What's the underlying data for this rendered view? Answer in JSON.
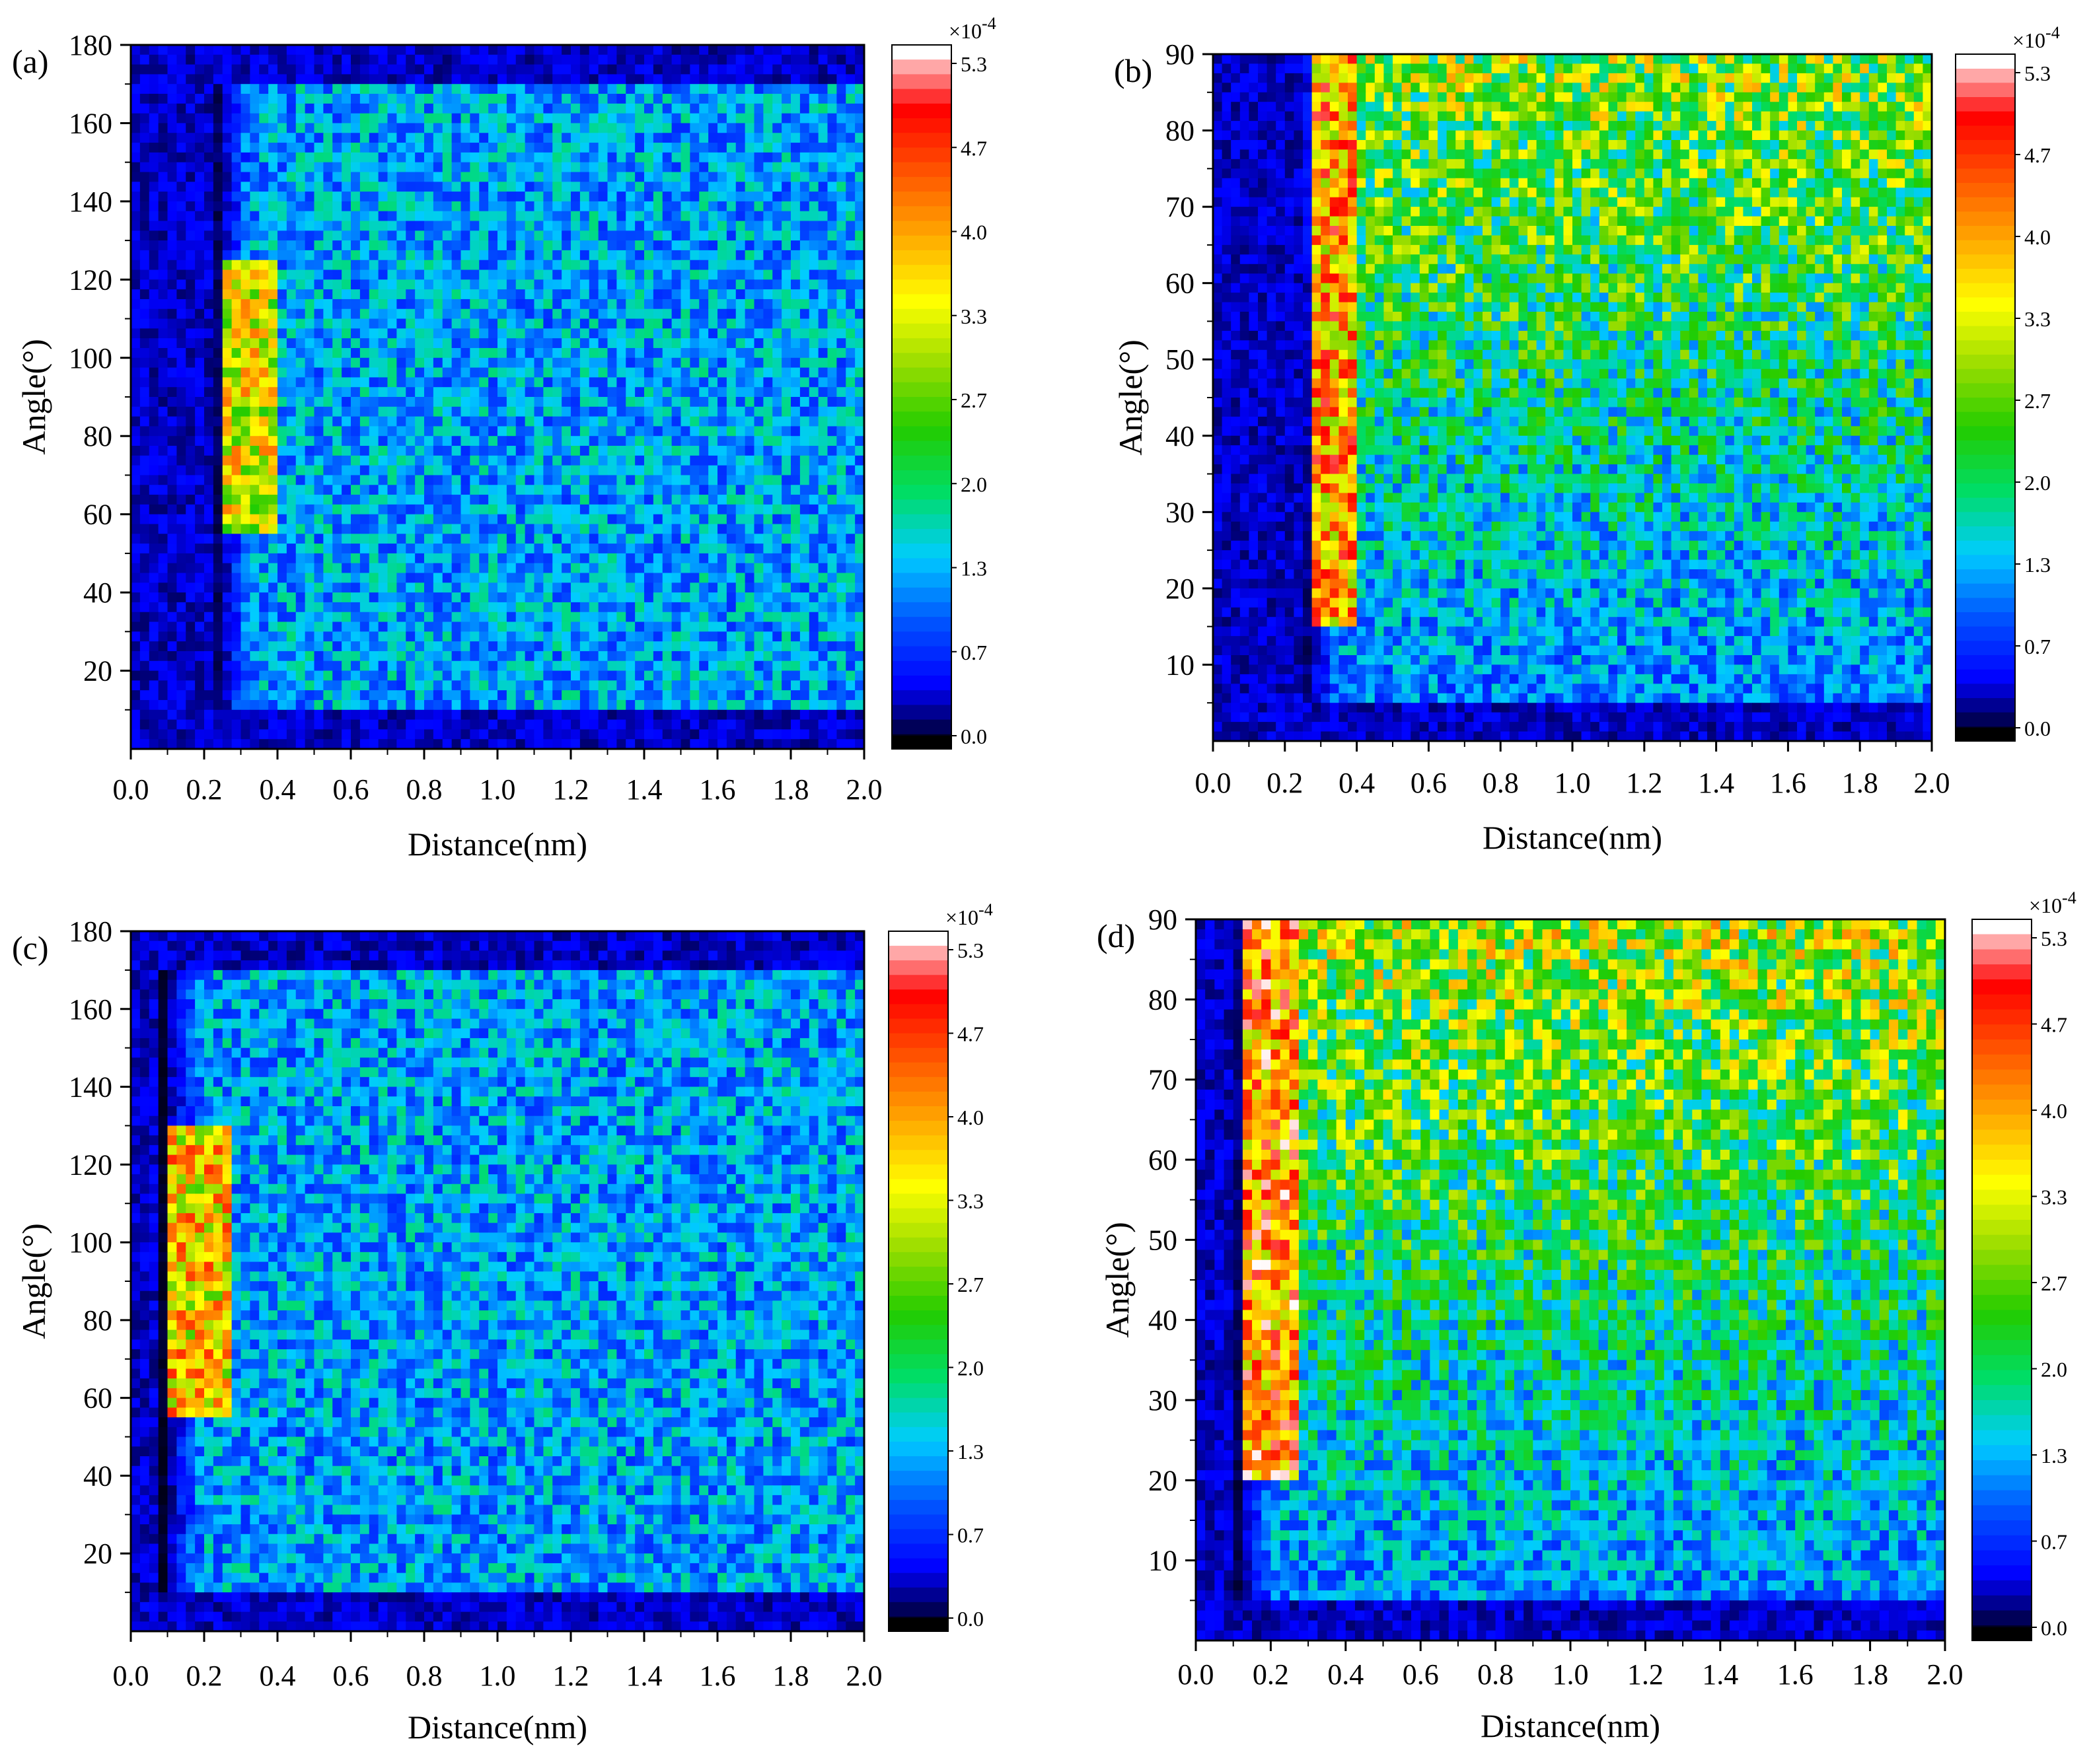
{
  "colormap": {
    "stops": [
      "#000000",
      "#0000ff",
      "#0055ff",
      "#00ccff",
      "#00dd66",
      "#22cc00",
      "#99dd00",
      "#ffff00",
      "#ffaa00",
      "#ff5500",
      "#ff0000",
      "#ffffff"
    ],
    "exponent_label": "×10",
    "exponent_power": "-4",
    "tick_labels": [
      "0.0",
      "0.7",
      "1.3",
      "2.0",
      "2.7",
      "3.3",
      "4.0",
      "4.7",
      "5.3"
    ],
    "min": 0.0,
    "max": 5.3
  },
  "chart_data": [
    {
      "type": "heatmap",
      "panel_label": "(a)",
      "xlabel": "Distance(nm)",
      "ylabel": "Angle(°)",
      "xlim": [
        0.0,
        2.0
      ],
      "ylim": [
        0,
        180
      ],
      "xticks": [
        "0.0",
        "0.2",
        "0.4",
        "0.6",
        "0.8",
        "1.0",
        "1.2",
        "1.4",
        "1.6",
        "1.8",
        "2.0"
      ],
      "yticks": [
        "20",
        "40",
        "60",
        "80",
        "100",
        "120",
        "140",
        "160",
        "180"
      ],
      "hotspot": {
        "x_range": [
          0.26,
          0.4
        ],
        "y_range": [
          55,
          125
        ],
        "peak": 4.2
      },
      "onset_x": 0.22,
      "background_level": 1.3,
      "background_y_range": [
        10,
        170
      ]
    },
    {
      "type": "heatmap",
      "panel_label": "(b)",
      "xlabel": "Distance(nm)",
      "ylabel": "Angle(°)",
      "xlim": [
        0.0,
        2.0
      ],
      "ylim": [
        0,
        90
      ],
      "xticks": [
        "0.0",
        "0.2",
        "0.4",
        "0.6",
        "0.8",
        "1.0",
        "1.2",
        "1.4",
        "1.6",
        "1.8",
        "2.0"
      ],
      "yticks": [
        "10",
        "20",
        "30",
        "40",
        "50",
        "60",
        "70",
        "80",
        "90"
      ],
      "hotspot": {
        "x_range": [
          0.28,
          0.4
        ],
        "y_range": [
          15,
          90
        ],
        "peak": 5.0
      },
      "onset_x": 0.24,
      "background_level": 2.3,
      "background_y_range": [
        5,
        90
      ]
    },
    {
      "type": "heatmap",
      "panel_label": "(c)",
      "xlabel": "Distance(nm)",
      "ylabel": "Angle(°)",
      "xlim": [
        0.0,
        2.0
      ],
      "ylim": [
        0,
        180
      ],
      "xticks": [
        "0.0",
        "0.2",
        "0.4",
        "0.6",
        "0.8",
        "1.0",
        "1.2",
        "1.4",
        "1.6",
        "1.8",
        "2.0"
      ],
      "yticks": [
        "20",
        "40",
        "60",
        "80",
        "100",
        "120",
        "140",
        "160",
        "180"
      ],
      "hotspot": {
        "x_range": [
          0.1,
          0.28
        ],
        "y_range": [
          55,
          130
        ],
        "peak": 4.6
      },
      "onset_x": 0.08,
      "background_level": 1.3,
      "background_y_range": [
        10,
        170
      ]
    },
    {
      "type": "heatmap",
      "panel_label": "(d)",
      "xlabel": "Distance(nm)",
      "ylabel": "Angle(°)",
      "xlim": [
        0.0,
        2.0
      ],
      "ylim": [
        0,
        90
      ],
      "xticks": [
        "0.0",
        "0.2",
        "0.4",
        "0.6",
        "0.8",
        "1.0",
        "1.2",
        "1.4",
        "1.6",
        "1.8",
        "2.0"
      ],
      "yticks": [
        "10",
        "20",
        "30",
        "40",
        "50",
        "60",
        "70",
        "80",
        "90"
      ],
      "hotspot": {
        "x_range": [
          0.12,
          0.28
        ],
        "y_range": [
          20,
          90
        ],
        "peak": 5.3
      },
      "onset_x": 0.1,
      "background_level": 2.4,
      "background_y_range": [
        5,
        90
      ]
    }
  ]
}
